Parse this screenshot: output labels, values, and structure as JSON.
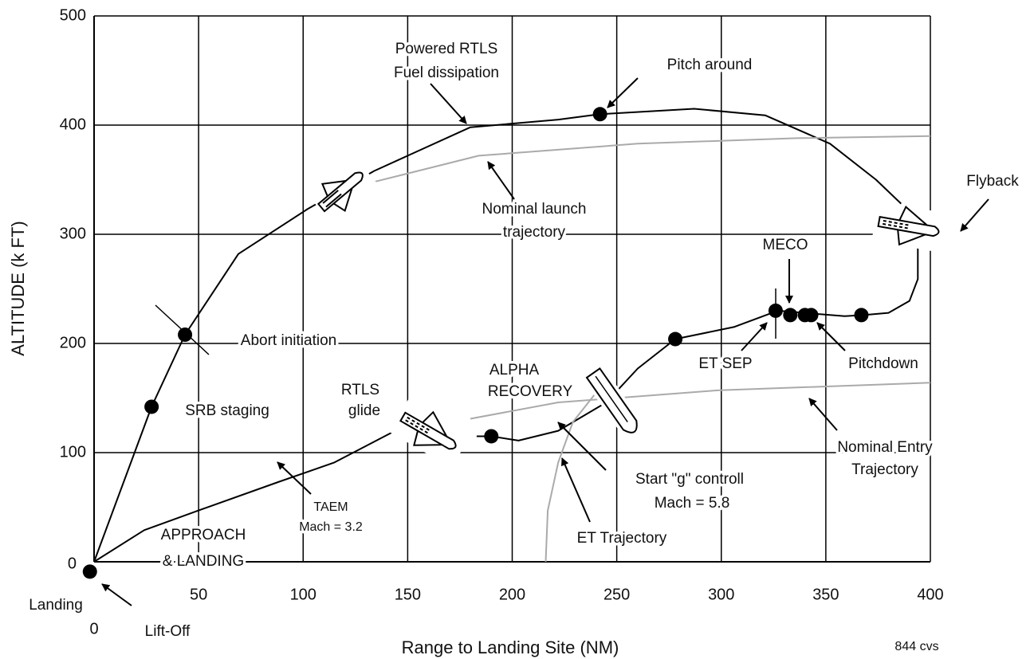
{
  "chart_data": {
    "type": "line",
    "x_label": "Range to Landing Site (NM)",
    "y_label": "ALTITUDE (k FT)",
    "xlim": [
      0,
      400
    ],
    "ylim": [
      0,
      500
    ],
    "xticks": [
      0,
      50,
      100,
      150,
      200,
      250,
      300,
      350,
      400
    ],
    "yticks": [
      0,
      100,
      200,
      300,
      400,
      500
    ],
    "grid": true,
    "series": [
      {
        "color": "#000000",
        "x": [
          0,
          27.5,
          43.5,
          69,
          102,
          134,
          180,
          222,
          242,
          287,
          321,
          352,
          374,
          386
        ],
        "values": [
          0,
          142,
          208,
          282,
          323,
          358,
          398,
          405,
          410,
          415,
          409,
          383,
          350,
          328
        ]
      },
      {
        "color": "#000000",
        "x": [
          394,
          394,
          390,
          380,
          368,
          359,
          327,
          306,
          278,
          260,
          245,
          222,
          203,
          190,
          183
        ],
        "values": [
          288,
          259,
          239,
          228,
          226,
          225,
          230,
          215,
          204,
          177,
          146,
          120,
          111,
          115,
          115
        ]
      },
      {
        "color": "#000000",
        "x": [
          144,
          115,
          88,
          50,
          24,
          0
        ],
        "values": [
          120,
          91,
          73,
          47,
          29,
          0
        ]
      },
      {
        "color": "#aaaaaa",
        "x": [
          108,
          134,
          184,
          260,
          336,
          400
        ],
        "values": [
          327,
          348,
          372,
          383,
          388,
          390
        ]
      },
      {
        "color": "#aaaaaa",
        "x": [
          180,
          222,
          298,
          400
        ],
        "values": [
          131,
          146,
          157,
          164
        ]
      },
      {
        "color": "#aaaaaa",
        "x": [
          216,
          217,
          222,
          229,
          241
        ],
        "values": [
          0,
          47,
          91,
          128,
          157
        ]
      },
      {
        "color": "#000000",
        "marker": "dot",
        "x": [
          -2,
          27.5,
          43.5,
          242,
          278,
          326,
          333,
          340,
          343,
          367,
          190
        ],
        "values": [
          -9,
          142,
          208,
          410,
          204,
          230,
          226,
          226,
          226,
          226,
          115
        ]
      }
    ],
    "annotations": [
      "Powered RTLS",
      "Fuel dissipation",
      "Pitch around",
      "Flyback",
      "Nominal launch",
      "trajectory",
      "MECO",
      "Abort initiation",
      "ALPHA",
      "RECOVERY",
      "ET SEP",
      "Pitchdown",
      "RTLS",
      "glide",
      "SRB staging",
      "Nominal Entry",
      "Trajectory",
      "Start \"g\" controll",
      "Mach = 5.8",
      "TAEM",
      "Mach = 3.2",
      "APPROACH",
      "& LANDING",
      "ET Trajectory",
      "Landing",
      "Lift-Off",
      "844 cvs"
    ]
  }
}
